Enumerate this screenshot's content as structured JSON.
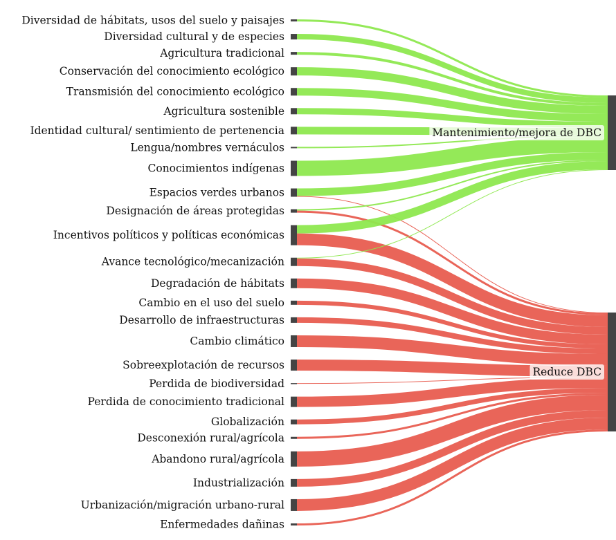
{
  "chart_data": {
    "type": "sankey",
    "colors": {
      "node": "#444444",
      "mantenimiento": "#8ee84f",
      "reduce": "#e85d50"
    },
    "targets": [
      {
        "id": "mant",
        "label": "Mantenimiento/mejora de DBC"
      },
      {
        "id": "red",
        "label": "Reduce DBC"
      }
    ],
    "sources": [
      {
        "label": "Diversidad de hábitats, usos del suelo y paisajes",
        "mant": 3,
        "red": 0
      },
      {
        "label": "Diversidad cultural y de especies",
        "mant": 8,
        "red": 0
      },
      {
        "label": "Agricultura tradicional",
        "mant": 4,
        "red": 0
      },
      {
        "label": "Conservación del conocimiento ecológico",
        "mant": 12,
        "red": 0
      },
      {
        "label": "Transmisión del conocimiento ecológico",
        "mant": 11,
        "red": 0
      },
      {
        "label": "Agricultura sostenible",
        "mant": 9,
        "red": 0
      },
      {
        "label": "Identidad cultural/ sentimiento de pertenencia",
        "mant": 11,
        "red": 0
      },
      {
        "label": "Lengua/nombres vernáculos",
        "mant": 2,
        "red": 0
      },
      {
        "label": "Conocimientos indígenas",
        "mant": 22,
        "red": 0
      },
      {
        "label": "Espacios verdes urbanos",
        "mant": 11,
        "red": 1
      },
      {
        "label": "Designación de áreas protegidas",
        "mant": 2,
        "red": 3
      },
      {
        "label": "Incentivos políticos y políticas económicas",
        "mant": 12,
        "red": 17
      },
      {
        "label": "Avance tecnológico/mecanización",
        "mant": 1,
        "red": 11
      },
      {
        "label": "Degradación de hábitats",
        "mant": 0,
        "red": 14
      },
      {
        "label": "Cambio en el uso del suelo",
        "mant": 0,
        "red": 6
      },
      {
        "label": "Desarrollo de infraestructuras",
        "mant": 0,
        "red": 8
      },
      {
        "label": "Cambio climático",
        "mant": 0,
        "red": 17
      },
      {
        "label": "Sobreexplotación de recursos",
        "mant": 0,
        "red": 16
      },
      {
        "label": "Perdida de biodiversidad",
        "mant": 0,
        "red": 1
      },
      {
        "label": "Perdida de conocimiento tradicional",
        "mant": 0,
        "red": 15
      },
      {
        "label": "Globalización",
        "mant": 0,
        "red": 7
      },
      {
        "label": "Desconexión rural/agrícola",
        "mant": 0,
        "red": 3
      },
      {
        "label": "Abandono rural/agrícola",
        "mant": 0,
        "red": 22
      },
      {
        "label": "Industrialización",
        "mant": 0,
        "red": 11
      },
      {
        "label": "Urbanización/migración urbano-rural",
        "mant": 0,
        "red": 17
      },
      {
        "label": "Enfermedades dañinas",
        "mant": 0,
        "red": 3
      }
    ]
  }
}
